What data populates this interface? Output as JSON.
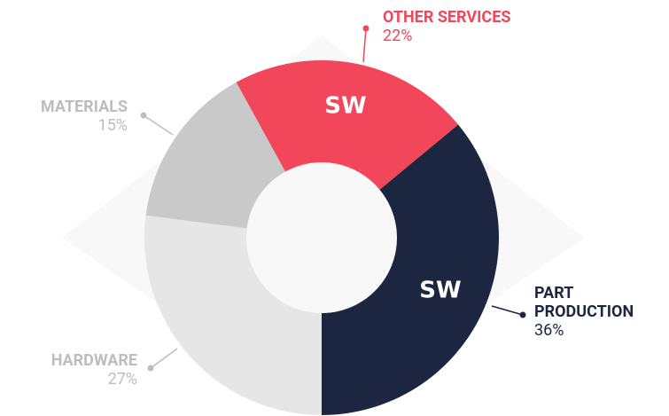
{
  "chart_data": {
    "type": "donut",
    "categories": [
      "HARDWARE",
      "MATERIALS",
      "OTHER SERVICES",
      "PART PRODUCTION"
    ],
    "values": [
      27,
      15,
      22,
      36
    ],
    "value_labels": [
      "27%",
      "15%",
      "22%",
      "36%"
    ],
    "colors": [
      "#e6e6e6",
      "#c9c9c9",
      "#f2475a",
      "#1c2640"
    ],
    "label_colors": [
      "#bdbdbd",
      "#bdbdbd",
      "#f2475a",
      "#1c2640"
    ],
    "logo_text": "SW"
  }
}
